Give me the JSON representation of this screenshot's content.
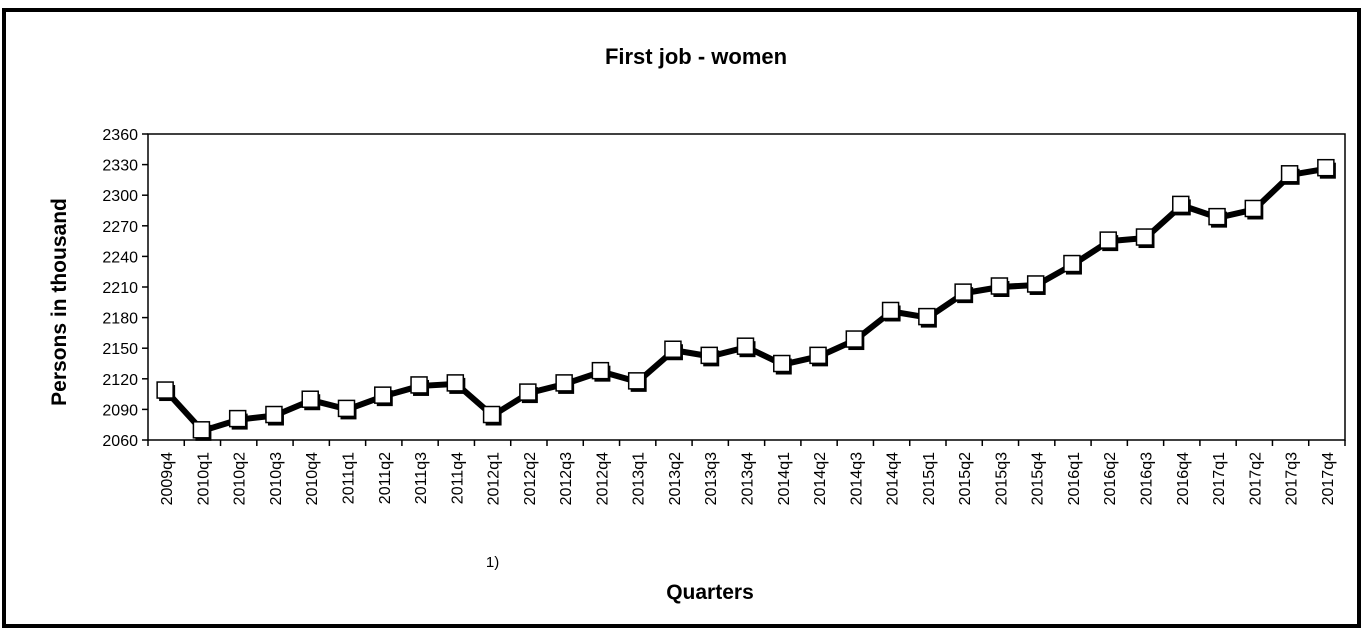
{
  "chart_data": {
    "type": "line",
    "title": "First job - women",
    "xlabel": "Quarters",
    "ylabel": "Persons in thousand",
    "ylim": [
      2060,
      2360
    ],
    "yticks": [
      2060,
      2090,
      2120,
      2150,
      2180,
      2210,
      2240,
      2270,
      2300,
      2330,
      2360
    ],
    "categories": [
      "2009q4",
      "2010q1",
      "2010q2",
      "2010q3",
      "2010q4",
      "2011q1",
      "2011q2",
      "2011q3",
      "2011q4",
      "2012q1",
      "2012q2",
      "2012q3",
      "2012q4",
      "2013q1",
      "2013q2",
      "2013q3",
      "2013q4",
      "2014q1",
      "2014q2",
      "2014q3",
      "2014q4",
      "2015q1",
      "2015q2",
      "2015q3",
      "2015q4",
      "2016q1",
      "2016q2",
      "2016q3",
      "2016q4",
      "2017q1",
      "2017q2",
      "2017q3",
      "2017q4"
    ],
    "series": [
      {
        "values": [
          2108,
          2069,
          2080,
          2084,
          2099,
          2090,
          2103,
          2113,
          2115,
          2084,
          2106,
          2115,
          2127,
          2117,
          2148,
          2142,
          2151,
          2134,
          2142,
          2158,
          2186,
          2180,
          2204,
          2210,
          2212,
          2232,
          2255,
          2258,
          2290,
          2278,
          2286,
          2320,
          2326
        ]
      }
    ],
    "footnote": {
      "category": "2012q1",
      "text": "1)"
    },
    "grid": false,
    "legend": "none",
    "colors": {
      "line": "#000000",
      "marker_fill": "#ffffff",
      "marker_stroke": "#000000"
    }
  }
}
